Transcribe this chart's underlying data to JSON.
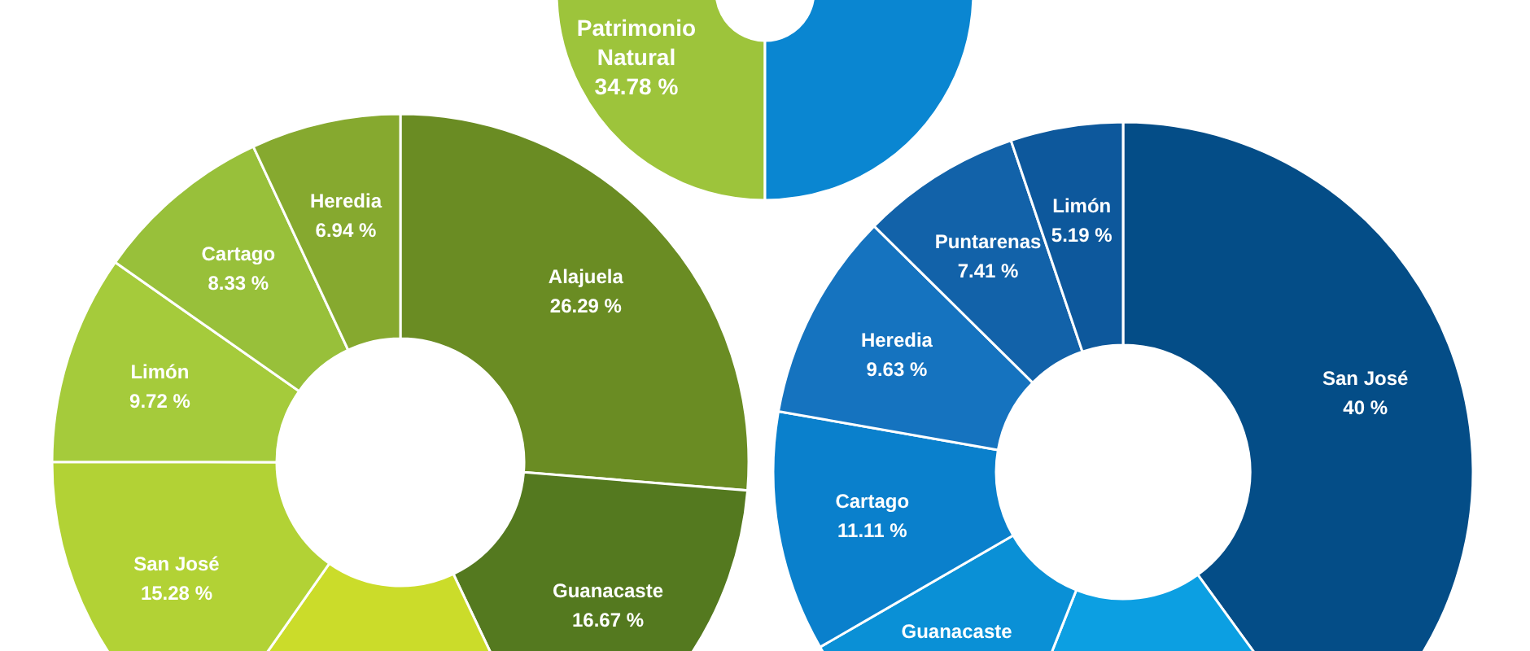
{
  "chart_data": [
    {
      "type": "donut",
      "categories": [
        "Patrimonio Natural",
        null
      ],
      "values": [
        34.78,
        65.22
      ],
      "colors": [
        "#9dc43b",
        "#0a86d1"
      ],
      "value_labels": [
        "34.78 %",
        null
      ]
    },
    {
      "type": "donut",
      "categories": [
        "Alajuela",
        "Guanacaste",
        null,
        "San José",
        "Limón",
        "Cartago",
        "Heredia"
      ],
      "values": [
        26.29,
        16.67,
        16.77,
        15.28,
        9.72,
        8.33,
        6.94
      ],
      "colors": [
        "#6a8c23",
        "#54791f",
        "#cbdc2a",
        "#b2d235",
        "#a5cb3b",
        "#98c03a",
        "#86a92f"
      ],
      "value_labels": [
        "26.29 %",
        "16.67 %",
        null,
        "15.28 %",
        "9.72 %",
        "8.33 %",
        "6.94 %"
      ]
    },
    {
      "type": "donut",
      "categories": [
        "San José",
        null,
        "Guanacaste",
        "Cartago",
        "Heredia",
        "Puntarenas",
        "Limón"
      ],
      "values": [
        40,
        16,
        10.66,
        11.11,
        9.63,
        7.41,
        5.19
      ],
      "colors": [
        "#044d87",
        "#0c9fe2",
        "#0a90d6",
        "#0a80cc",
        "#1573bf",
        "#1262a9",
        "#0d589c"
      ],
      "value_labels": [
        "40 %",
        null,
        null,
        "11.11 %",
        "9.63 %",
        "7.41 %",
        "5.19 %"
      ]
    }
  ]
}
